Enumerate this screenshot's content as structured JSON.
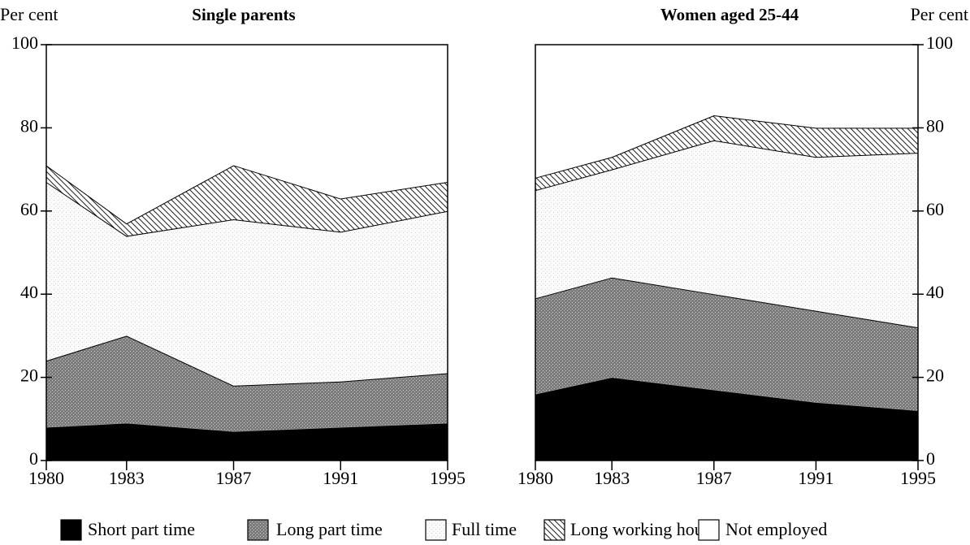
{
  "chart_data": [
    {
      "type": "stacked-area",
      "title": "Single parents",
      "ylabel": "Per cent",
      "yaxis_side": "left",
      "x": [
        1980,
        1983,
        1987,
        1991,
        1995
      ],
      "xlim": [
        1980,
        1995
      ],
      "xticks": [
        1980,
        1983,
        1987,
        1991,
        1995
      ],
      "ylim": [
        0,
        100
      ],
      "yticks": [
        0,
        20,
        40,
        60,
        80,
        100
      ],
      "series": [
        {
          "name": "Short part time",
          "pattern": "solid",
          "values": [
            8,
            9,
            7,
            8,
            9
          ]
        },
        {
          "name": "Long part time",
          "pattern": "stipple-dark",
          "values": [
            16,
            21,
            11,
            11,
            12
          ]
        },
        {
          "name": "Full time",
          "pattern": "stipple-light",
          "values": [
            43,
            24,
            40,
            36,
            39
          ]
        },
        {
          "name": "Long working hours",
          "pattern": "hatch",
          "values": [
            4,
            3,
            13,
            8,
            7
          ]
        },
        {
          "name": "Not employed",
          "pattern": "none",
          "values": [
            29,
            43,
            29,
            37,
            33
          ]
        }
      ]
    },
    {
      "type": "stacked-area",
      "title": "Women aged 25-44",
      "ylabel": "Per cent",
      "yaxis_side": "right",
      "x": [
        1980,
        1983,
        1987,
        1991,
        1995
      ],
      "xlim": [
        1980,
        1995
      ],
      "xticks": [
        1980,
        1983,
        1987,
        1991,
        1995
      ],
      "ylim": [
        0,
        100
      ],
      "yticks": [
        0,
        20,
        40,
        60,
        80,
        100
      ],
      "series": [
        {
          "pattern": "solid",
          "values": [
            16,
            20,
            17,
            14,
            12
          ]
        },
        {
          "pattern": "stipple-dark",
          "values": [
            23,
            24,
            23,
            22,
            20
          ]
        },
        {
          "pattern": "stipple-light",
          "values": [
            26,
            26,
            37,
            37,
            42
          ]
        },
        {
          "pattern": "hatch",
          "values": [
            3,
            3,
            6,
            7,
            6
          ]
        },
        {
          "pattern": "none",
          "values": [
            32,
            27,
            17,
            20,
            20
          ]
        }
      ]
    }
  ]
}
